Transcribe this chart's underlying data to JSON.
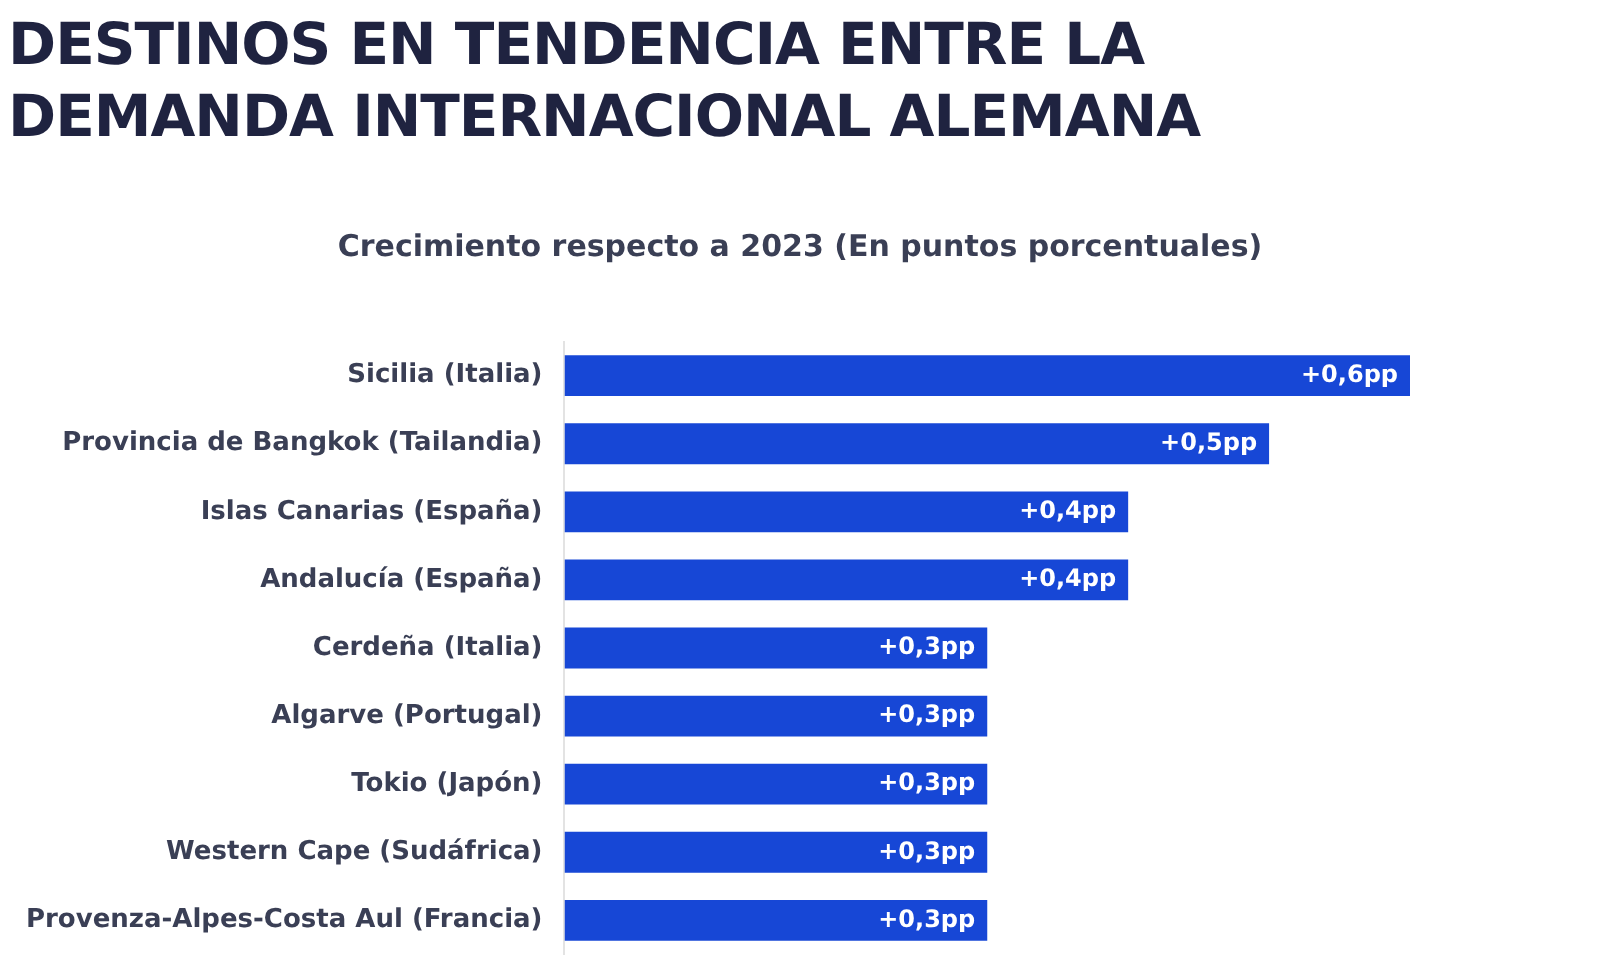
{
  "chart_data": {
    "type": "bar",
    "orientation": "horizontal",
    "title": "DESTINOS EN TENDENCIA ENTRE LA DEMANDA INTERNACIONAL ALEMANA",
    "subtitle": "Crecimiento respecto a 2023 (En puntos porcentuales)",
    "categories": [
      "Sicilia (Italia)",
      "Provincia de Bangkok (Tailandia)",
      "Islas Canarias (España)",
      "Andalucía (España)",
      "Cerdeña (Italia)",
      "Algarve (Portugal)",
      "Tokio (Japón)",
      "Western Cape (Sudáfrica)",
      "Provenza-Alpes-Costa Aul (Francia)"
    ],
    "values": [
      0.6,
      0.5,
      0.4,
      0.4,
      0.3,
      0.3,
      0.3,
      0.3,
      0.3
    ],
    "value_labels": [
      "+0,6pp",
      "+0,5pp",
      "+0,4pp",
      "+0,4pp",
      "+0,3pp",
      "+0,3pp",
      "+0,3pp",
      "+0,3pp",
      "+0,3pp"
    ],
    "color": "#1747d6",
    "xlim": [
      0,
      0.6
    ],
    "tick_labels": "y",
    "grid": false,
    "legend": false
  }
}
